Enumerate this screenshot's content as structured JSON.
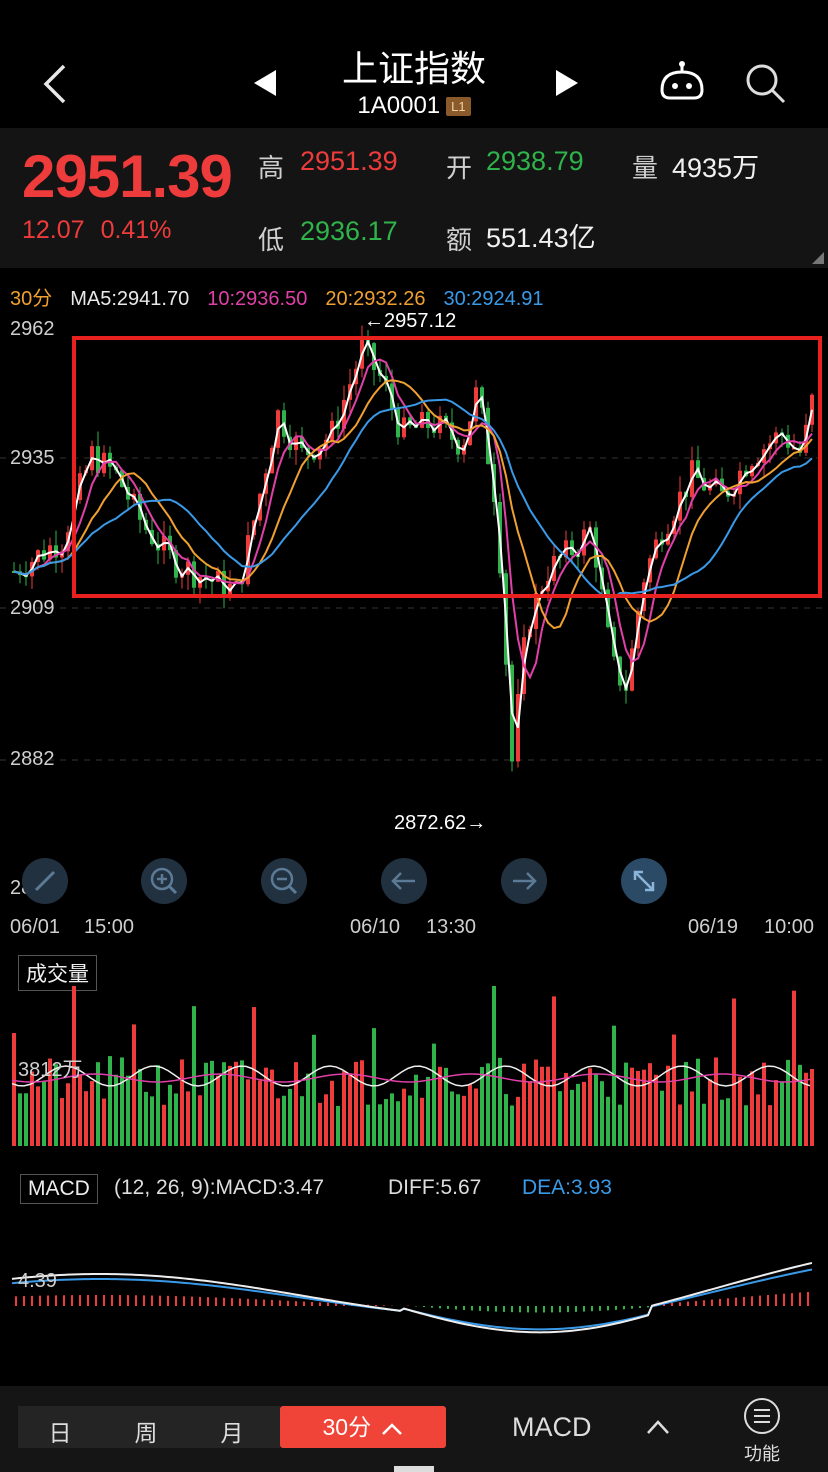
{
  "header": {
    "title": "上证指数",
    "code": "1A0001",
    "badge": "L1"
  },
  "quote": {
    "price": "2951.39",
    "change": "12.07",
    "change_pct": "0.41%",
    "high_label": "高",
    "high_value": "2951.39",
    "open_label": "开",
    "open_value": "2938.79",
    "volume_label": "量",
    "volume_value": "4935万",
    "low_label": "低",
    "low_value": "2936.17",
    "amount_label": "额",
    "amount_value": "551.43亿"
  },
  "ma_legend": {
    "period": "30分",
    "ma5": "MA5:2941.70",
    "ma10": "10:2936.50",
    "ma20": "20:2932.26",
    "ma30": "30:2924.91"
  },
  "price_axis": {
    "y1": "2962",
    "y2": "2935",
    "y3": "2909",
    "y4": "2882",
    "y5": "2856"
  },
  "annotations": {
    "high_marker": "←2957.12",
    "low_marker": "2872.62→"
  },
  "time_axis": {
    "d1": "06/01",
    "t1": "15:00",
    "d2": "06/10",
    "t2": "13:30",
    "d3": "06/19",
    "t3": "10:00"
  },
  "volume": {
    "title": "成交量",
    "level_label": "3812万"
  },
  "macd": {
    "title": "MACD",
    "params": "(12, 26, 9):MACD:3.47",
    "diff": "DIFF:5.67",
    "dea": "DEA:3.93",
    "level_label": "4.39"
  },
  "bottom_bar": {
    "day": "日",
    "week": "周",
    "month": "月",
    "active_period": "30分",
    "indicator": "MACD",
    "function_label": "功能"
  },
  "colors": {
    "up": "#ee3b3b",
    "down": "#2fb34a",
    "ma5": "#ffffff",
    "ma10": "#e040a8",
    "ma20": "#f0a030",
    "ma30": "#3a9ae8",
    "highlight_box": "#e8201e"
  },
  "icons": [
    "back-arrow-icon",
    "triangle-left-icon",
    "triangle-right-icon",
    "robot-icon",
    "search-icon",
    "zoom-in-icon",
    "zoom-out-icon",
    "left-arrow-icon",
    "right-arrow-icon",
    "expand-icon",
    "menu-icon",
    "chevron-up-icon"
  ]
}
